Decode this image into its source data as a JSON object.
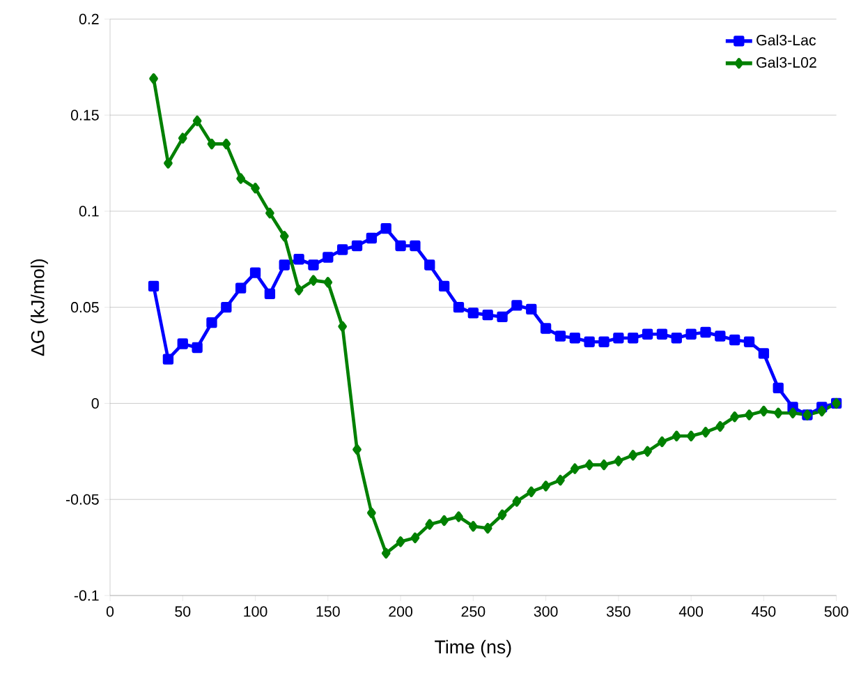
{
  "chart_data": {
    "type": "line",
    "xlabel": "Time (ns)",
    "ylabel": "ΔG (kJ/mol)",
    "x": [
      30,
      40,
      50,
      60,
      70,
      80,
      90,
      100,
      110,
      120,
      130,
      140,
      150,
      160,
      170,
      180,
      190,
      200,
      210,
      220,
      230,
      240,
      250,
      260,
      270,
      280,
      290,
      300,
      310,
      320,
      330,
      340,
      350,
      360,
      370,
      380,
      390,
      400,
      410,
      420,
      430,
      440,
      450,
      460,
      470,
      480,
      490,
      500
    ],
    "series": [
      {
        "name": "Gal3-Lac",
        "color": "#0000ff",
        "marker": "square",
        "values": [
          0.061,
          0.023,
          0.031,
          0.029,
          0.042,
          0.05,
          0.06,
          0.068,
          0.057,
          0.072,
          0.075,
          0.072,
          0.076,
          0.08,
          0.082,
          0.086,
          0.091,
          0.082,
          0.082,
          0.072,
          0.061,
          0.05,
          0.047,
          0.046,
          0.045,
          0.051,
          0.049,
          0.039,
          0.035,
          0.034,
          0.032,
          0.032,
          0.034,
          0.034,
          0.036,
          0.036,
          0.034,
          0.036,
          0.037,
          0.035,
          0.033,
          0.032,
          0.026,
          0.008,
          -0.002,
          -0.006,
          -0.002,
          0.0
        ]
      },
      {
        "name": "Gal3-L02",
        "color": "#008000",
        "marker": "diamond",
        "values": [
          0.169,
          0.125,
          0.138,
          0.147,
          0.135,
          0.135,
          0.117,
          0.112,
          0.099,
          0.087,
          0.059,
          0.064,
          0.063,
          0.04,
          -0.024,
          -0.057,
          -0.078,
          -0.072,
          -0.07,
          -0.063,
          -0.061,
          -0.059,
          -0.064,
          -0.065,
          -0.058,
          -0.051,
          -0.046,
          -0.043,
          -0.04,
          -0.034,
          -0.032,
          -0.032,
          -0.03,
          -0.027,
          -0.025,
          -0.02,
          -0.017,
          -0.017,
          -0.015,
          -0.012,
          -0.007,
          -0.006,
          -0.004,
          -0.005,
          -0.005,
          -0.006,
          -0.004,
          0.0
        ]
      }
    ],
    "xlim": [
      0,
      500
    ],
    "xticks": [
      0,
      50,
      100,
      150,
      200,
      250,
      300,
      350,
      400,
      450,
      500
    ],
    "ylim": [
      -0.1,
      0.2
    ],
    "yticks": [
      -0.1,
      -0.05,
      0,
      0.05,
      0.1,
      0.15,
      0.2
    ],
    "grid": "y",
    "legend": "top right"
  }
}
